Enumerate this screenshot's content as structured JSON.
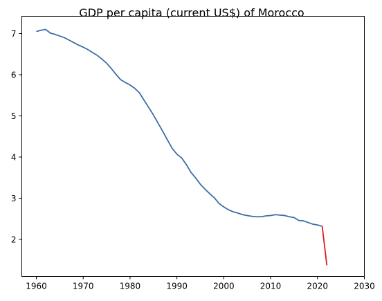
{
  "chart_data": {
    "type": "line",
    "title": "GDP per capita (current US$) of Morocco",
    "xlabel": "",
    "ylabel": "",
    "xlim": [
      1956.9,
      2030
    ],
    "ylim": [
      1.1,
      7.42
    ],
    "x_ticks": [
      1960,
      1970,
      1980,
      1990,
      2000,
      2010,
      2020,
      2030
    ],
    "y_ticks": [
      2,
      3,
      4,
      5,
      6,
      7
    ],
    "grid": false,
    "legend": "none",
    "series": [
      {
        "color": "#3a6ea5",
        "points": [
          [
            1960,
            7.05
          ],
          [
            1961,
            7.08
          ],
          [
            1962,
            7.1
          ],
          [
            1963,
            7.01
          ],
          [
            1964,
            6.98
          ],
          [
            1965,
            6.94
          ],
          [
            1966,
            6.9
          ],
          [
            1967,
            6.84
          ],
          [
            1968,
            6.78
          ],
          [
            1969,
            6.72
          ],
          [
            1970,
            6.67
          ],
          [
            1971,
            6.61
          ],
          [
            1972,
            6.54
          ],
          [
            1973,
            6.47
          ],
          [
            1974,
            6.38
          ],
          [
            1975,
            6.28
          ],
          [
            1976,
            6.15
          ],
          [
            1977,
            6.01
          ],
          [
            1978,
            5.88
          ],
          [
            1979,
            5.81
          ],
          [
            1980,
            5.75
          ],
          [
            1981,
            5.67
          ],
          [
            1982,
            5.56
          ],
          [
            1983,
            5.38
          ],
          [
            1984,
            5.2
          ],
          [
            1985,
            5.02
          ],
          [
            1986,
            4.82
          ],
          [
            1987,
            4.62
          ],
          [
            1988,
            4.41
          ],
          [
            1989,
            4.21
          ],
          [
            1990,
            4.07
          ],
          [
            1991,
            3.98
          ],
          [
            1992,
            3.82
          ],
          [
            1993,
            3.63
          ],
          [
            1994,
            3.49
          ],
          [
            1995,
            3.34
          ],
          [
            1996,
            3.22
          ],
          [
            1997,
            3.11
          ],
          [
            1998,
            3.01
          ],
          [
            1999,
            2.87
          ],
          [
            2000,
            2.79
          ],
          [
            2001,
            2.72
          ],
          [
            2002,
            2.67
          ],
          [
            2003,
            2.64
          ],
          [
            2004,
            2.6
          ],
          [
            2005,
            2.58
          ],
          [
            2006,
            2.56
          ],
          [
            2007,
            2.55
          ],
          [
            2008,
            2.55
          ],
          [
            2009,
            2.57
          ],
          [
            2010,
            2.58
          ],
          [
            2011,
            2.6
          ],
          [
            2012,
            2.59
          ],
          [
            2013,
            2.58
          ],
          [
            2014,
            2.55
          ],
          [
            2015,
            2.53
          ],
          [
            2016,
            2.46
          ],
          [
            2017,
            2.45
          ],
          [
            2018,
            2.41
          ],
          [
            2019,
            2.37
          ],
          [
            2020,
            2.35
          ],
          [
            2021,
            2.32
          ]
        ]
      },
      {
        "color": "#e8171b",
        "points": [
          [
            2021,
            2.32
          ],
          [
            2022,
            1.37
          ]
        ]
      }
    ]
  }
}
